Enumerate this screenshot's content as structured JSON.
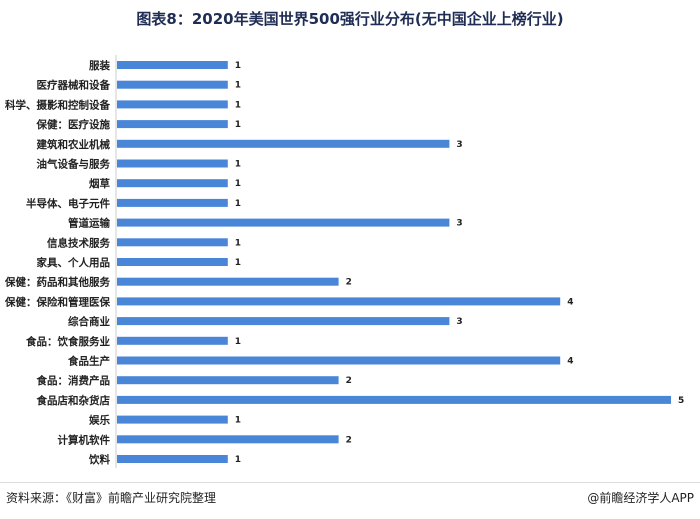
{
  "chart_data": {
    "type": "bar",
    "orientation": "horizontal",
    "title": "图表8：2020年美国世界500强行业分布(无中国企业上榜行业)",
    "categories": [
      "服装",
      "医疗器械和设备",
      "科学、摄影和控制设备",
      "保健：医疗设施",
      "建筑和农业机械",
      "油气设备与服务",
      "烟草",
      "半导体、电子元件",
      "管道运输",
      "信息技术服务",
      "家具、个人用品",
      "保健：药品和其他服务",
      "保健：保险和管理医保",
      "综合商业",
      "食品：饮食服务业",
      "食品生产",
      "食品：消费产品",
      "食品店和杂货店",
      "娱乐",
      "计算机软件",
      "饮料"
    ],
    "values": [
      1,
      1,
      1,
      1,
      3,
      1,
      1,
      1,
      3,
      1,
      1,
      2,
      4,
      3,
      1,
      4,
      2,
      5,
      1,
      2,
      1
    ],
    "xlim": [
      0,
      5
    ],
    "grid": false,
    "color": "#4a86d8"
  },
  "footer": {
    "source": "资料来源：《财富》前瞻产业研究院整理",
    "brand": "@前瞻经济学人APP"
  }
}
